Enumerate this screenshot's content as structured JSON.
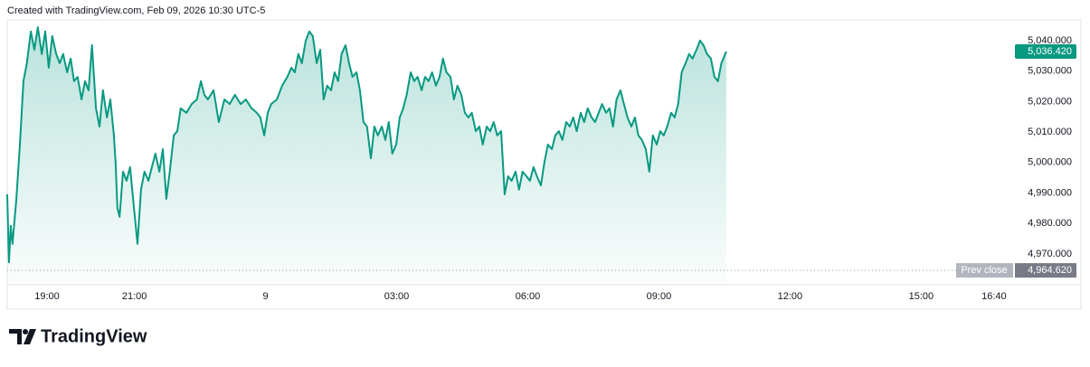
{
  "credit": "Created with TradingView.com, Feb 09, 2026 10:30 UTC-5",
  "brand": "TradingView",
  "chart_data": {
    "type": "area",
    "series": [
      {
        "color": "#089981",
        "values": [
          4989.6,
          4967.3,
          4979.2,
          4973.3,
          4988.1,
          5005.9,
          5026.7,
          5032.6,
          5043.0,
          5037.0,
          5044.4,
          5035.6,
          5043.0,
          5031.1,
          5041.5,
          5035.6,
          5032.6,
          5035.6,
          5029.6,
          5034.1,
          5026.7,
          5028.1,
          5020.7,
          5026.7,
          5023.7,
          5038.5,
          5017.8,
          5011.8,
          5023.7,
          5014.8,
          5020.7,
          5008.9,
          5000.0,
          4985.1,
          4982.2,
          4997.0,
          4994.0,
          4998.5,
          4985.1,
          4973.3,
          4991.1,
          4997.0,
          4994.0,
          4998.5,
          5002.9,
          4997.0,
          5004.4,
          4988.1,
          4997.0,
          5008.9,
          5010.3,
          5017.8,
          5016.3,
          5019.2,
          5020.7,
          5026.7,
          5022.2,
          5020.7,
          5023.7,
          5013.3,
          5020.7,
          5019.2,
          5022.2,
          5019.2,
          5020.7,
          5017.8,
          5016.3,
          5014.8,
          5008.9,
          5016.3,
          5019.2,
          5020.7,
          5025.2,
          5028.1,
          5031.1,
          5029.6,
          5035.6,
          5032.6,
          5040.0,
          5043.0,
          5041.5,
          5032.6,
          5037.0,
          5020.7,
          5025.2,
          5023.7,
          5029.6,
          5026.7,
          5035.6,
          5038.5,
          5032.6,
          5028.1,
          5029.6,
          5023.7,
          5013.3,
          5011.8,
          5001.4,
          5011.8,
          5008.9,
          5011.8,
          5007.4,
          5013.3,
          5002.9,
          5005.9,
          5014.8,
          5017.8,
          5022.2,
          5029.6,
          5026.7,
          5028.1,
          5023.7,
          5028.1,
          5026.7,
          5029.6,
          5025.2,
          5028.1,
          5034.1,
          5029.6,
          5028.1,
          5020.7,
          5025.2,
          5022.2,
          5016.3,
          5014.8,
          5016.3,
          5010.3,
          5011.8,
          5005.9,
          5011.8,
          5010.3,
          5013.3,
          5008.9,
          5010.3,
          4989.6,
          4995.5,
          4994.0,
          4997.0,
          4991.1,
          4997.0,
          4995.5,
          4994.0,
          4998.5,
          4995.5,
          4992.5,
          5000.0,
          5005.9,
          5004.4,
          5008.9,
          5010.3,
          5007.4,
          5013.3,
          5011.8,
          5014.8,
          5010.3,
          5016.3,
          5013.3,
          5017.8,
          5014.8,
          5013.3,
          5016.3,
          5019.2,
          5016.3,
          5017.8,
          5011.8,
          5020.7,
          5023.7,
          5019.2,
          5014.8,
          5011.8,
          5014.8,
          5008.9,
          5007.4,
          5004.4,
          4997.0,
          5008.9,
          5005.9,
          5010.3,
          5008.9,
          5011.8,
          5016.3,
          5014.8,
          5019.2,
          5029.6,
          5032.6,
          5035.6,
          5034.1,
          5037.0,
          5040.0,
          5038.5,
          5035.6,
          5034.1,
          5028.1,
          5026.7,
          5032.6,
          5036.42
        ]
      }
    ],
    "x": [
      18.09,
      18.13,
      18.17,
      18.21,
      18.3,
      18.38,
      18.46,
      18.54,
      18.63,
      18.71,
      18.79,
      18.88,
      18.96,
      19.04,
      19.12,
      19.21,
      19.29,
      19.37,
      19.46,
      19.54,
      19.62,
      19.7,
      19.79,
      19.87,
      19.95,
      20.03,
      20.12,
      20.2,
      20.28,
      20.37,
      20.45,
      20.53,
      20.57,
      20.61,
      20.66,
      20.74,
      20.82,
      20.9,
      20.99,
      21.07,
      21.15,
      21.23,
      21.32,
      21.4,
      21.48,
      21.57,
      21.65,
      21.73,
      21.81,
      21.9,
      21.98,
      22.06,
      22.19,
      22.31,
      22.43,
      22.52,
      22.6,
      22.68,
      22.81,
      22.93,
      23.06,
      23.18,
      23.3,
      23.43,
      23.55,
      23.68,
      23.8,
      23.88,
      23.97,
      24.05,
      24.13,
      24.26,
      24.38,
      24.5,
      24.59,
      24.67,
      24.75,
      24.83,
      24.92,
      25.0,
      25.08,
      25.17,
      25.25,
      25.33,
      25.41,
      25.5,
      25.58,
      25.66,
      25.74,
      25.83,
      25.91,
      25.99,
      26.08,
      26.16,
      26.24,
      26.32,
      26.41,
      26.49,
      26.57,
      26.66,
      26.74,
      26.82,
      26.9,
      26.99,
      27.07,
      27.15,
      27.23,
      27.32,
      27.4,
      27.48,
      27.57,
      27.65,
      27.73,
      27.81,
      27.9,
      27.98,
      28.06,
      28.14,
      28.23,
      28.31,
      28.39,
      28.48,
      28.56,
      28.64,
      28.72,
      28.81,
      28.89,
      28.97,
      29.06,
      29.14,
      29.22,
      29.3,
      29.39,
      29.47,
      29.55,
      29.63,
      29.72,
      29.8,
      29.88,
      29.97,
      30.05,
      30.13,
      30.21,
      30.3,
      30.38,
      30.46,
      30.55,
      30.63,
      30.71,
      30.79,
      30.88,
      30.96,
      31.04,
      31.12,
      31.21,
      31.29,
      31.37,
      31.46,
      31.54,
      31.62,
      31.7,
      31.79,
      31.87,
      31.95,
      32.03,
      32.12,
      32.2,
      32.28,
      32.37,
      32.45,
      32.53,
      32.61,
      32.7,
      32.78,
      32.86,
      32.95,
      33.03,
      33.11,
      33.19,
      33.28,
      33.36,
      33.44,
      33.52,
      33.61,
      33.69,
      33.77,
      33.86,
      33.94,
      34.02,
      34.1,
      34.19,
      34.27,
      34.35,
      34.43,
      34.54
    ],
    "xlim": [
      18.09,
      41.0
    ],
    "xticks": [
      {
        "value": 19,
        "label": "19:00"
      },
      {
        "value": 21,
        "label": "21:00"
      },
      {
        "value": 24,
        "label": "9"
      },
      {
        "value": 27,
        "label": "03:00"
      },
      {
        "value": 30,
        "label": "06:00"
      },
      {
        "value": 33,
        "label": "09:00"
      },
      {
        "value": 36,
        "label": "12:00"
      },
      {
        "value": 39,
        "label": "15:00"
      },
      {
        "value": 40.667,
        "label": "16:40"
      }
    ],
    "ylim": [
      4960.8,
      5046.2
    ],
    "yticks": [
      {
        "value": 4970,
        "label": "4,970.000"
      },
      {
        "value": 4980,
        "label": "4,980.000"
      },
      {
        "value": 4990,
        "label": "4,990.000"
      },
      {
        "value": 5000,
        "label": "5,000.000"
      },
      {
        "value": 5010,
        "label": "5,010.000"
      },
      {
        "value": 5020,
        "label": "5,020.000"
      },
      {
        "value": 5030,
        "label": "5,030.000"
      },
      {
        "value": 5040,
        "label": "5,040.000"
      }
    ],
    "grid": false,
    "last_price": {
      "value": 5036.42,
      "label": "5,036.420",
      "color": "#089981"
    },
    "prev_close": {
      "name": "Prev close",
      "value": 4964.62,
      "label": "4,964.620"
    }
  }
}
